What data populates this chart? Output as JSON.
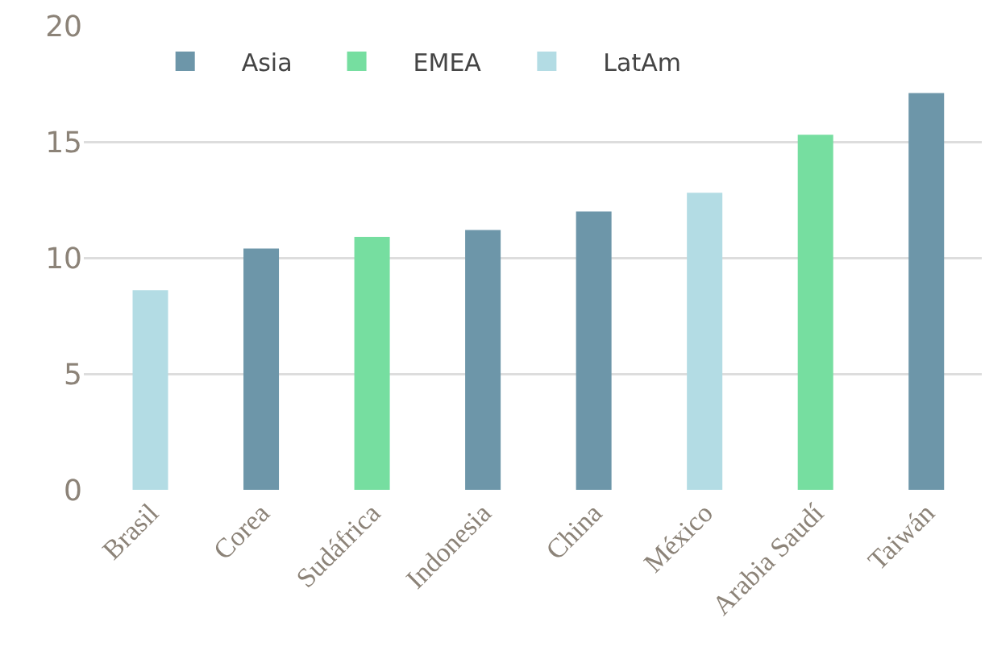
{
  "chart_data": {
    "type": "bar",
    "categories": [
      "Brasil",
      "Corea",
      "Sudáfrica",
      "Indonesia",
      "China",
      "México",
      "Arabia Saudí",
      "Taiwán"
    ],
    "series": [
      {
        "name": "Asia",
        "color": "#6d96a9",
        "values": [
          null,
          10.4,
          null,
          11.2,
          12.0,
          null,
          null,
          17.1
        ]
      },
      {
        "name": "EMEA",
        "color": "#76dea0",
        "values": [
          null,
          null,
          10.9,
          null,
          null,
          null,
          15.3,
          null
        ]
      },
      {
        "name": "LatAm",
        "color": "#b3dce4",
        "values": [
          8.6,
          null,
          null,
          null,
          null,
          12.8,
          null,
          null
        ]
      }
    ],
    "ylim": [
      0,
      20
    ],
    "yticks": [
      0,
      5,
      10,
      15,
      20
    ],
    "grid": "y",
    "legend": "top left"
  }
}
